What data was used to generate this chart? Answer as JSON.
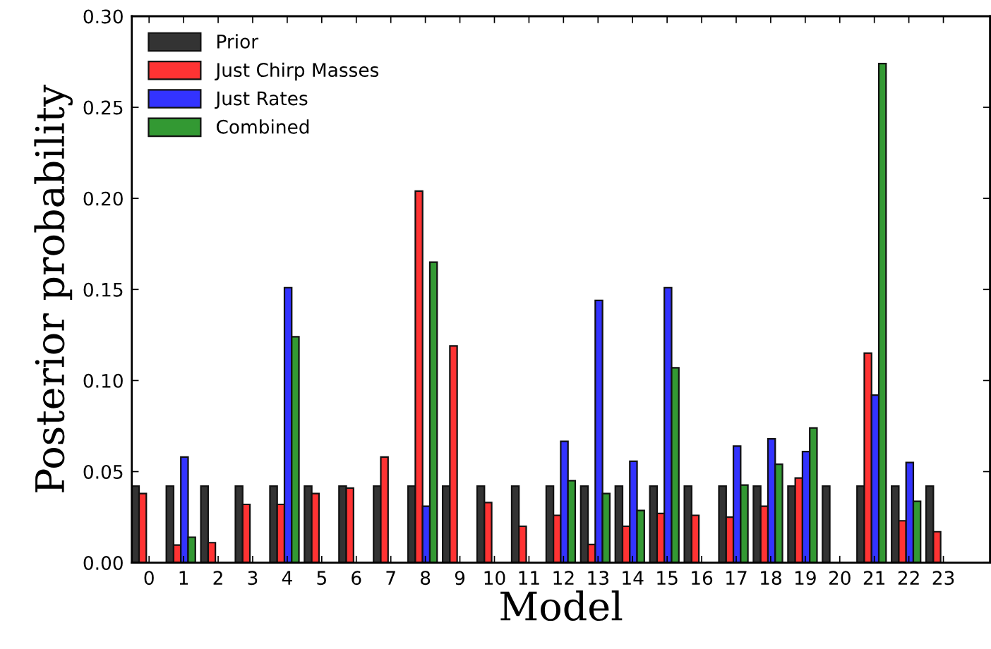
{
  "chart_data": {
    "type": "bar",
    "xlabel": "Model",
    "ylabel": "Posterior probability",
    "categories": [
      "0",
      "1",
      "2",
      "3",
      "4",
      "5",
      "6",
      "7",
      "8",
      "9",
      "10",
      "11",
      "12",
      "13",
      "14",
      "15",
      "16",
      "17",
      "18",
      "19",
      "20",
      "21",
      "22",
      "23"
    ],
    "series": [
      {
        "name": "Prior",
        "color": "#333333",
        "values": [
          0.042,
          0.042,
          0.042,
          0.042,
          0.042,
          0.042,
          0.042,
          0.042,
          0.042,
          0.042,
          0.042,
          0.042,
          0.042,
          0.042,
          0.042,
          0.042,
          0.042,
          0.042,
          0.042,
          0.042,
          0.042,
          0.042,
          0.042,
          0.042
        ]
      },
      {
        "name": "Just Chirp Masses",
        "color": "#ff3333",
        "values": [
          0.038,
          0.0097,
          0.011,
          0.032,
          0.032,
          0.038,
          0.041,
          0.058,
          0.204,
          0.119,
          0.033,
          0.02,
          0.026,
          0.01,
          0.02,
          0.027,
          0.026,
          0.025,
          0.031,
          0.0465,
          null,
          0.115,
          0.023,
          0.017
        ]
      },
      {
        "name": "Just Rates",
        "color": "#3333ff",
        "values": [
          null,
          0.058,
          null,
          null,
          0.151,
          null,
          null,
          null,
          0.031,
          null,
          null,
          null,
          0.0666,
          0.144,
          0.0557,
          0.151,
          null,
          0.064,
          0.068,
          0.061,
          null,
          0.092,
          0.055,
          null
        ]
      },
      {
        "name": "Combined",
        "color": "#339933",
        "values": [
          null,
          0.014,
          null,
          null,
          0.124,
          null,
          null,
          null,
          0.165,
          null,
          null,
          null,
          0.045,
          0.038,
          0.0287,
          0.107,
          null,
          0.0426,
          0.054,
          0.074,
          null,
          0.274,
          0.0337,
          null
        ]
      }
    ],
    "ylim": [
      0,
      0.3
    ],
    "yticks": [
      {
        "value": 0,
        "label": "0.00"
      },
      {
        "value": 0.05,
        "label": "0.05"
      },
      {
        "value": 0.1,
        "label": "0.10"
      },
      {
        "value": 0.15,
        "label": "0.15"
      },
      {
        "value": 0.2,
        "label": "0.20"
      },
      {
        "value": 0.25,
        "label": "0.25"
      },
      {
        "value": 0.3,
        "label": "0.30"
      }
    ],
    "grid": false,
    "legend": "top left"
  }
}
